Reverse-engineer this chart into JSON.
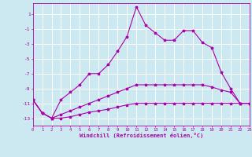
{
  "xlabel": "Windchill (Refroidissement éolien,°C)",
  "bg_color": "#cce8f0",
  "grid_color": "#ffffff",
  "line_color": "#aa00aa",
  "xlim": [
    0,
    23
  ],
  "ylim": [
    -14,
    2.5
  ],
  "yticks": [
    1,
    -1,
    -3,
    -5,
    -7,
    -9,
    -11,
    -13
  ],
  "xticks": [
    0,
    1,
    2,
    3,
    4,
    5,
    6,
    7,
    8,
    9,
    10,
    11,
    12,
    13,
    14,
    15,
    16,
    17,
    18,
    19,
    20,
    21,
    22,
    23
  ],
  "line1_x": [
    0,
    1,
    2,
    3,
    4,
    5,
    6,
    7,
    8,
    9,
    10,
    11,
    12,
    13,
    14,
    15,
    16,
    17,
    18,
    19,
    20,
    21,
    22,
    23
  ],
  "line1_y": [
    -10.5,
    -12.3,
    -13.0,
    -10.5,
    -9.5,
    -8.5,
    -7.0,
    -7.0,
    -5.8,
    -4.0,
    -2.0,
    2.0,
    -0.5,
    -1.5,
    -2.5,
    -2.5,
    -1.2,
    -1.2,
    -2.8,
    -3.5,
    -6.8,
    -9.0,
    -11.0,
    -11.0
  ],
  "line2_x": [
    0,
    1,
    2,
    3,
    4,
    5,
    6,
    7,
    8,
    9,
    10,
    11,
    12,
    13,
    14,
    15,
    16,
    17,
    18,
    19,
    20,
    21,
    22,
    23
  ],
  "line2_y": [
    -10.5,
    -12.3,
    -13.0,
    -13.0,
    -12.8,
    -12.5,
    -12.2,
    -12.0,
    -11.8,
    -11.5,
    -11.2,
    -11.0,
    -11.0,
    -11.0,
    -11.0,
    -11.0,
    -11.0,
    -11.0,
    -11.0,
    -11.0,
    -11.0,
    -11.0,
    -11.0,
    -11.0
  ],
  "line3_x": [
    0,
    1,
    2,
    3,
    4,
    5,
    6,
    7,
    8,
    9,
    10,
    11,
    12,
    13,
    14,
    15,
    16,
    17,
    18,
    19,
    20,
    21,
    22,
    23
  ],
  "line3_y": [
    -10.5,
    -12.3,
    -13.0,
    -12.5,
    -12.0,
    -11.5,
    -11.0,
    -10.5,
    -10.0,
    -9.5,
    -9.0,
    -8.5,
    -8.5,
    -8.5,
    -8.5,
    -8.5,
    -8.5,
    -8.5,
    -8.5,
    -8.8,
    -9.2,
    -9.5,
    -11.0,
    -11.0
  ]
}
